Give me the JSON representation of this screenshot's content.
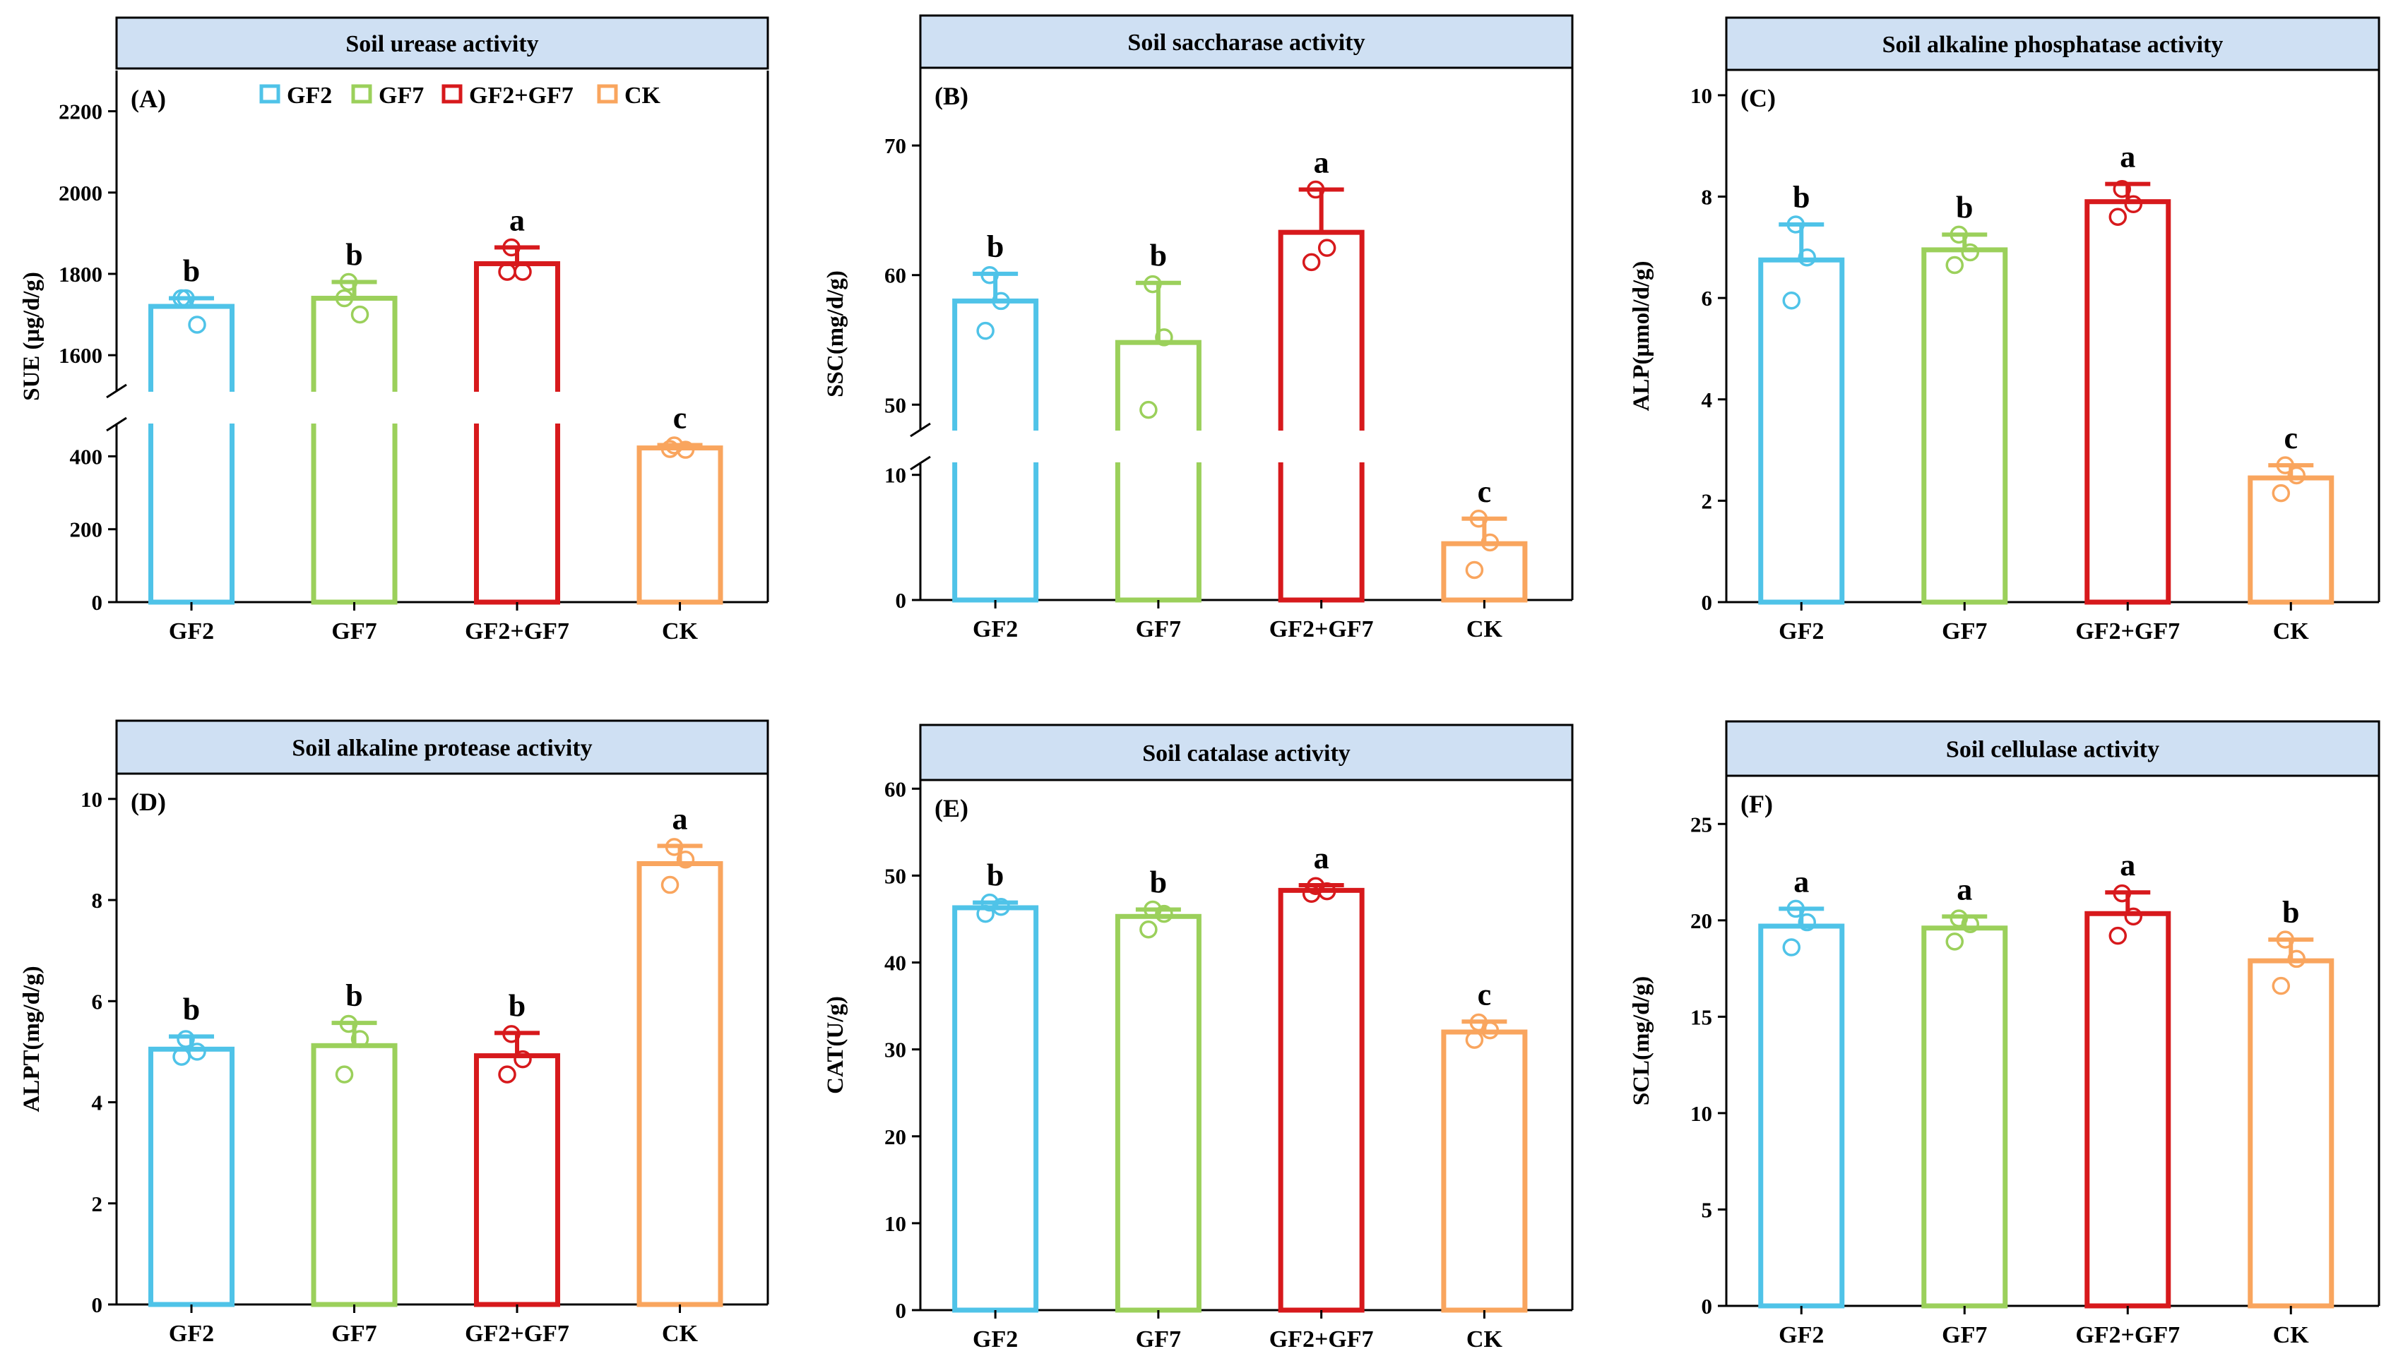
{
  "figure": {
    "colors": {
      "GF2": "#4FC3E8",
      "GF7": "#9BD05B",
      "GF2+GF7": "#D7191C",
      "CK": "#F9A55E",
      "header_bg": "#CFE0F3"
    },
    "legend": [
      {
        "label": "GF2",
        "color_key": "GF2"
      },
      {
        "label": "GF7",
        "color_key": "GF7"
      },
      {
        "label": "GF2+GF7",
        "color_key": "GF2+GF7"
      },
      {
        "label": "CK",
        "color_key": "CK"
      }
    ]
  },
  "chart_data": [
    {
      "type": "bar",
      "title": "Soil urease activity",
      "panel_label": "(A)",
      "ylabel": "SUE (μg/d/g)",
      "categories": [
        "GF2",
        "GF7",
        "GF2+GF7",
        "CK"
      ],
      "values": [
        1720,
        1740,
        1825,
        423
      ],
      "errors": [
        20,
        40,
        40,
        8
      ],
      "points": [
        [
          1740,
          1675,
          1740
        ],
        [
          1780,
          1700,
          1740
        ],
        [
          1865,
          1805,
          1805
        ],
        [
          430,
          418,
          420
        ]
      ],
      "letters": [
        "b",
        "b",
        "a",
        "c"
      ],
      "axis_break": true,
      "lower_ylim": [
        0,
        490
      ],
      "upper_ylim": [
        1510,
        2300
      ],
      "lower_ticks": [
        0,
        200,
        400
      ],
      "upper_ticks": [
        1600,
        1800,
        2000,
        2200
      ]
    },
    {
      "type": "bar",
      "title": "Soil saccharase activity",
      "panel_label": "(B)",
      "ylabel": "SSC(mg/d/g)",
      "categories": [
        "GF2",
        "GF7",
        "GF2+GF7",
        "CK"
      ],
      "values": [
        58.0,
        54.8,
        63.3,
        4.5
      ],
      "errors": [
        2.1,
        4.6,
        3.3,
        2.0
      ],
      "points": [
        [
          60.0,
          58.0,
          55.7
        ],
        [
          59.3,
          55.2,
          49.6
        ],
        [
          66.6,
          62.1,
          61.0
        ],
        [
          6.5,
          4.6,
          2.4
        ]
      ],
      "letters": [
        "b",
        "b",
        "a",
        "c"
      ],
      "axis_break": true,
      "lower_ylim": [
        0,
        11
      ],
      "upper_ylim": [
        48,
        76
      ],
      "lower_ticks": [
        0,
        10
      ],
      "upper_ticks": [
        50,
        60,
        70
      ]
    },
    {
      "type": "bar",
      "title": "Soil  alkaline phosphatase activity",
      "panel_label": "(C)",
      "ylabel": "ALP(μmol/d/g)",
      "categories": [
        "GF2",
        "GF7",
        "GF2+GF7",
        "CK"
      ],
      "values": [
        6.75,
        6.95,
        7.9,
        2.45
      ],
      "errors": [
        0.7,
        0.3,
        0.35,
        0.25
      ],
      "points": [
        [
          7.45,
          6.8,
          5.95
        ],
        [
          7.25,
          6.9,
          6.65
        ],
        [
          8.15,
          7.85,
          7.6
        ],
        [
          2.7,
          2.5,
          2.15
        ]
      ],
      "letters": [
        "b",
        "b",
        "a",
        "c"
      ],
      "axis_break": false,
      "ylim": [
        0,
        10.5
      ],
      "ticks": [
        0,
        2,
        4,
        6,
        8,
        10
      ]
    },
    {
      "type": "bar",
      "title": "Soil alkaline protease activity",
      "panel_label": "(D)",
      "ylabel": "ALPT(mg/d/g)",
      "categories": [
        "GF2",
        "GF7",
        "GF2+GF7",
        "CK"
      ],
      "values": [
        5.05,
        5.12,
        4.92,
        8.72
      ],
      "errors": [
        0.25,
        0.45,
        0.45,
        0.35
      ],
      "points": [
        [
          5.25,
          5.0,
          4.9
        ],
        [
          5.55,
          5.25,
          4.55
        ],
        [
          5.35,
          4.85,
          4.55
        ],
        [
          9.05,
          8.8,
          8.3
        ]
      ],
      "letters": [
        "b",
        "b",
        "b",
        "a"
      ],
      "axis_break": false,
      "ylim": [
        0,
        10.5
      ],
      "ticks": [
        0,
        2,
        4,
        6,
        8,
        10
      ]
    },
    {
      "type": "bar",
      "title": "Soil catalase activity",
      "panel_label": "(E)",
      "ylabel": "CAT(U/g)",
      "categories": [
        "GF2",
        "GF7",
        "GF2+GF7",
        "CK"
      ],
      "values": [
        46.3,
        45.3,
        48.3,
        32.0
      ],
      "errors": [
        0.6,
        0.8,
        0.6,
        1.2
      ],
      "points": [
        [
          46.9,
          46.4,
          45.6
        ],
        [
          46.1,
          45.6,
          43.8
        ],
        [
          48.8,
          48.2,
          47.9
        ],
        [
          33.1,
          32.2,
          31.1
        ]
      ],
      "letters": [
        "b",
        "b",
        "a",
        "c"
      ],
      "axis_break": false,
      "ylim": [
        0,
        61
      ],
      "ticks": [
        0,
        10,
        20,
        30,
        40,
        50,
        60
      ]
    },
    {
      "type": "bar",
      "title": "Soil cellulase activity",
      "panel_label": "(F)",
      "ylabel": "SCL(mg/d/g)",
      "categories": [
        "GF2",
        "GF7",
        "GF2+GF7",
        "CK"
      ],
      "values": [
        19.7,
        19.6,
        20.35,
        17.9
      ],
      "errors": [
        0.9,
        0.6,
        1.1,
        1.1
      ],
      "points": [
        [
          20.6,
          19.9,
          18.6
        ],
        [
          20.1,
          19.8,
          18.9
        ],
        [
          21.4,
          20.2,
          19.2
        ],
        [
          19.0,
          18.0,
          16.6
        ]
      ],
      "letters": [
        "a",
        "a",
        "a",
        "b"
      ],
      "axis_break": false,
      "ylim": [
        0,
        27.5
      ],
      "ticks": [
        0,
        5,
        10,
        15,
        20,
        25
      ]
    }
  ]
}
